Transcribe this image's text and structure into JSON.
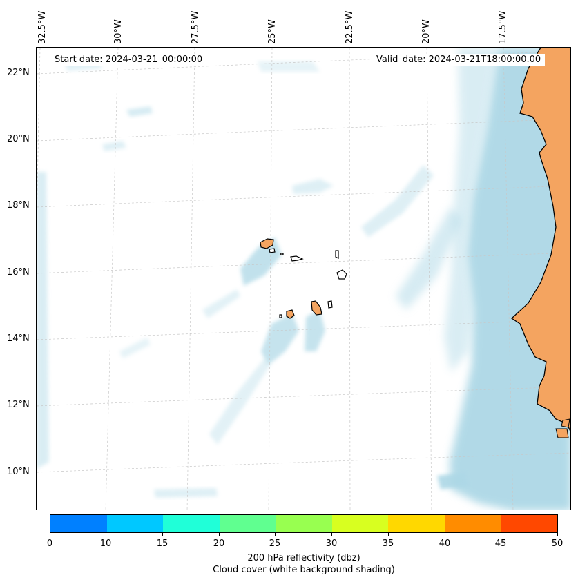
{
  "map": {
    "start_date_text": "Start date: 2024-03-21_00:00:00",
    "valid_date_text": "Valid_date: 2024-03-21T18:00:00.00",
    "lon_labels": [
      "32.5°W",
      "30°W",
      "27.5°W",
      "25°W",
      "22.5°W",
      "20°W",
      "17.5°W"
    ],
    "lat_labels": [
      "22°N",
      "20°N",
      "18°N",
      "16°N",
      "14°N",
      "12°N",
      "10°N"
    ],
    "land_color": "#f4a460",
    "cloud_color": "#add8e6",
    "grid_color": "#c8c8c8"
  },
  "colorbar": {
    "tick_labels": [
      "0",
      "10",
      "15",
      "20",
      "25",
      "30",
      "35",
      "40",
      "45",
      "50"
    ],
    "colors": [
      "#0080ff",
      "#00c8ff",
      "#20ffd8",
      "#60ff90",
      "#98ff50",
      "#d8ff20",
      "#ffd800",
      "#ff8c00",
      "#ff4800"
    ],
    "label_line1": "200 hPa reflectivity (dbz)",
    "label_line2": "Cloud cover (white background shading)"
  }
}
